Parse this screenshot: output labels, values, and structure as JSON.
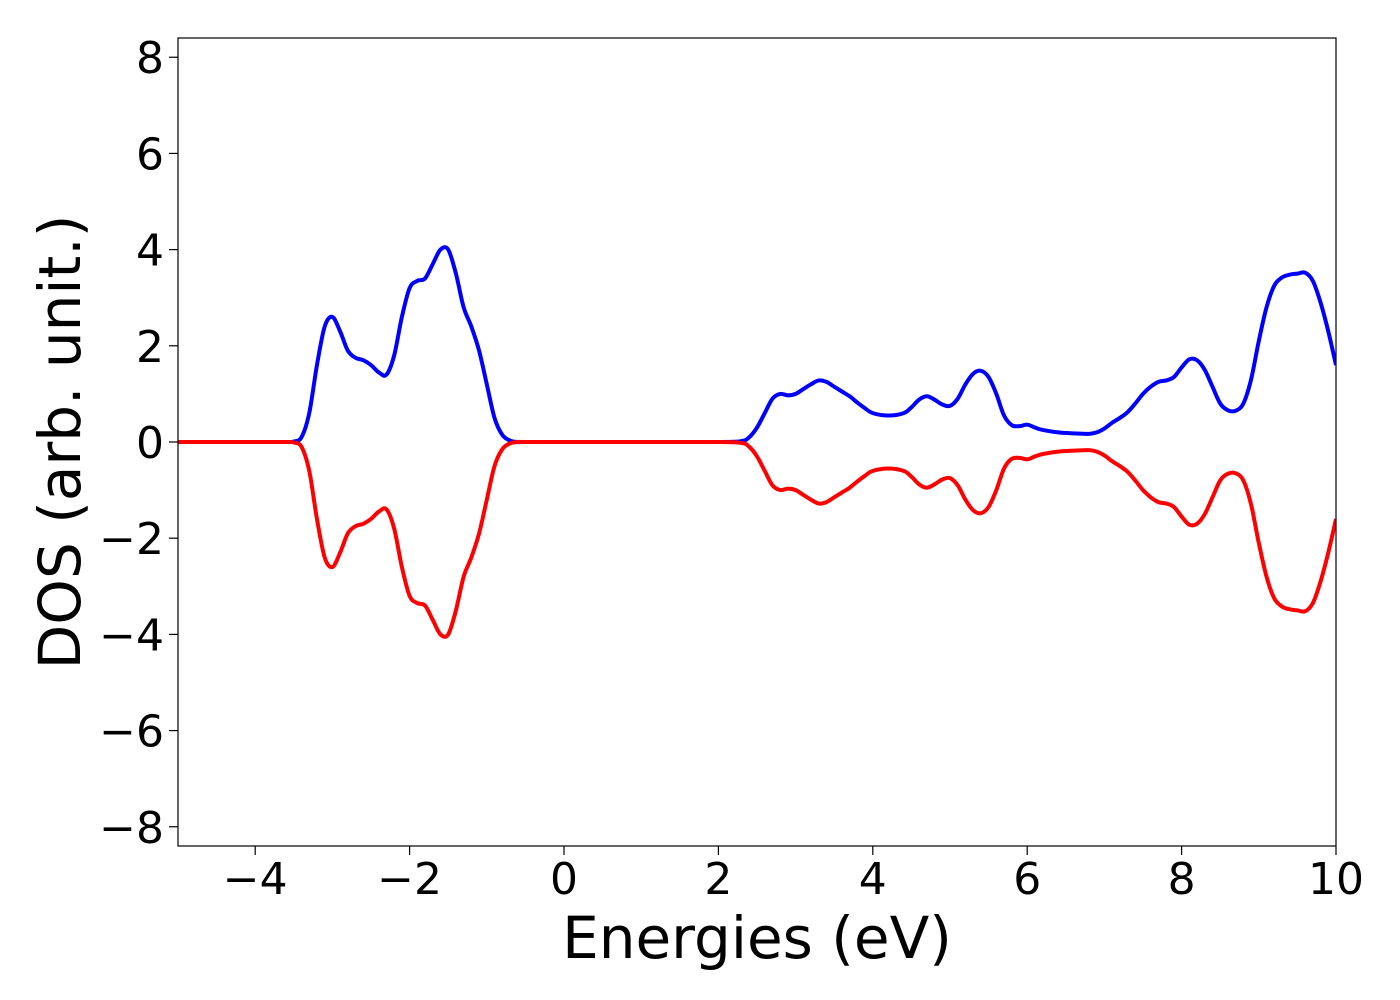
{
  "chart_data": {
    "type": "line",
    "title": "",
    "xlabel": "Energies (eV)",
    "ylabel": "DOS (arb. unit.)",
    "xlim": [
      -5,
      10
    ],
    "ylim": [
      -8.4,
      8.4
    ],
    "xticks": [
      -4,
      -2,
      0,
      2,
      4,
      6,
      8,
      10
    ],
    "yticks": [
      -8,
      -6,
      -4,
      -2,
      0,
      2,
      4,
      6,
      8
    ],
    "xtick_labels": [
      "−4",
      "−2",
      "0",
      "2",
      "4",
      "6",
      "8",
      "10"
    ],
    "ytick_labels": [
      "−8",
      "−6",
      "−4",
      "−2",
      "0",
      "2",
      "4",
      "6",
      "8"
    ],
    "grid": false,
    "legend": "none",
    "series": [
      {
        "color": "#0000ff",
        "x": [
          -5.0,
          -4.0,
          -3.6,
          -3.5,
          -3.4,
          -3.3,
          -3.2,
          -3.1,
          -3.0,
          -2.9,
          -2.8,
          -2.7,
          -2.6,
          -2.5,
          -2.4,
          -2.3,
          -2.2,
          -2.1,
          -2.0,
          -1.9,
          -1.8,
          -1.7,
          -1.6,
          -1.5,
          -1.4,
          -1.3,
          -1.2,
          -1.1,
          -1.0,
          -0.9,
          -0.8,
          -0.7,
          -0.6,
          -0.5,
          0.0,
          1.0,
          2.0,
          2.3,
          2.4,
          2.5,
          2.6,
          2.7,
          2.8,
          2.9,
          3.0,
          3.1,
          3.2,
          3.3,
          3.4,
          3.5,
          3.6,
          3.7,
          3.8,
          3.9,
          4.0,
          4.2,
          4.4,
          4.5,
          4.6,
          4.7,
          4.8,
          4.9,
          5.0,
          5.1,
          5.2,
          5.3,
          5.4,
          5.5,
          5.6,
          5.7,
          5.8,
          5.9,
          6.0,
          6.1,
          6.2,
          6.4,
          6.6,
          6.8,
          6.9,
          7.0,
          7.1,
          7.2,
          7.3,
          7.4,
          7.5,
          7.6,
          7.7,
          7.8,
          7.9,
          8.0,
          8.1,
          8.2,
          8.3,
          8.4,
          8.5,
          8.6,
          8.7,
          8.8,
          8.9,
          9.0,
          9.1,
          9.2,
          9.3,
          9.4,
          9.5,
          9.6,
          9.7,
          9.8,
          9.9,
          10.0
        ],
        "y": [
          0.0,
          0.0,
          0.0,
          0.01,
          0.1,
          0.6,
          1.6,
          2.4,
          2.6,
          2.3,
          1.9,
          1.75,
          1.7,
          1.6,
          1.45,
          1.4,
          1.8,
          2.6,
          3.2,
          3.35,
          3.4,
          3.7,
          4.0,
          4.0,
          3.5,
          2.8,
          2.4,
          1.9,
          1.2,
          0.5,
          0.15,
          0.03,
          0.0,
          0.0,
          0.0,
          0.0,
          0.0,
          0.02,
          0.1,
          0.3,
          0.6,
          0.9,
          1.0,
          0.97,
          1.0,
          1.1,
          1.2,
          1.28,
          1.25,
          1.15,
          1.05,
          0.95,
          0.82,
          0.7,
          0.6,
          0.55,
          0.6,
          0.72,
          0.88,
          0.95,
          0.88,
          0.78,
          0.75,
          0.9,
          1.2,
          1.42,
          1.48,
          1.35,
          1.0,
          0.55,
          0.35,
          0.33,
          0.36,
          0.3,
          0.25,
          0.2,
          0.18,
          0.17,
          0.2,
          0.28,
          0.4,
          0.5,
          0.62,
          0.8,
          1.0,
          1.15,
          1.25,
          1.28,
          1.35,
          1.55,
          1.72,
          1.7,
          1.5,
          1.15,
          0.8,
          0.66,
          0.65,
          0.8,
          1.3,
          2.1,
          2.8,
          3.25,
          3.42,
          3.48,
          3.5,
          3.52,
          3.35,
          2.9,
          2.3,
          1.6
        ]
      },
      {
        "color": "#ff0000",
        "x": [
          -5.0,
          -4.0,
          -3.6,
          -3.5,
          -3.4,
          -3.3,
          -3.2,
          -3.1,
          -3.0,
          -2.9,
          -2.8,
          -2.7,
          -2.6,
          -2.5,
          -2.4,
          -2.3,
          -2.2,
          -2.1,
          -2.0,
          -1.9,
          -1.8,
          -1.7,
          -1.6,
          -1.5,
          -1.4,
          -1.3,
          -1.2,
          -1.1,
          -1.0,
          -0.9,
          -0.8,
          -0.7,
          -0.6,
          -0.5,
          0.0,
          1.0,
          2.0,
          2.3,
          2.4,
          2.5,
          2.6,
          2.7,
          2.8,
          2.9,
          3.0,
          3.1,
          3.2,
          3.3,
          3.4,
          3.5,
          3.6,
          3.7,
          3.8,
          3.9,
          4.0,
          4.2,
          4.4,
          4.5,
          4.6,
          4.7,
          4.8,
          4.9,
          5.0,
          5.1,
          5.2,
          5.3,
          5.4,
          5.5,
          5.6,
          5.7,
          5.8,
          5.9,
          6.0,
          6.1,
          6.2,
          6.4,
          6.6,
          6.8,
          6.9,
          7.0,
          7.1,
          7.2,
          7.3,
          7.4,
          7.5,
          7.6,
          7.7,
          7.8,
          7.9,
          8.0,
          8.1,
          8.2,
          8.3,
          8.4,
          8.5,
          8.6,
          8.7,
          8.8,
          8.9,
          9.0,
          9.1,
          9.2,
          9.3,
          9.4,
          9.5,
          9.6,
          9.7,
          9.8,
          9.9,
          10.0
        ],
        "y": [
          0.0,
          0.0,
          0.0,
          -0.01,
          -0.1,
          -0.6,
          -1.6,
          -2.4,
          -2.6,
          -2.3,
          -1.9,
          -1.75,
          -1.7,
          -1.6,
          -1.45,
          -1.4,
          -1.8,
          -2.6,
          -3.2,
          -3.35,
          -3.4,
          -3.7,
          -4.0,
          -4.0,
          -3.5,
          -2.8,
          -2.4,
          -1.9,
          -1.2,
          -0.5,
          -0.15,
          -0.03,
          0.0,
          0.0,
          0.0,
          0.0,
          0.0,
          -0.02,
          -0.1,
          -0.3,
          -0.6,
          -0.9,
          -1.0,
          -0.97,
          -1.0,
          -1.1,
          -1.2,
          -1.28,
          -1.25,
          -1.15,
          -1.05,
          -0.95,
          -0.82,
          -0.7,
          -0.6,
          -0.55,
          -0.6,
          -0.72,
          -0.88,
          -0.95,
          -0.88,
          -0.78,
          -0.75,
          -0.9,
          -1.2,
          -1.42,
          -1.48,
          -1.35,
          -1.0,
          -0.55,
          -0.35,
          -0.33,
          -0.36,
          -0.3,
          -0.25,
          -0.2,
          -0.18,
          -0.17,
          -0.2,
          -0.28,
          -0.4,
          -0.5,
          -0.62,
          -0.8,
          -1.0,
          -1.15,
          -1.25,
          -1.28,
          -1.35,
          -1.55,
          -1.72,
          -1.7,
          -1.5,
          -1.15,
          -0.8,
          -0.66,
          -0.65,
          -0.8,
          -1.3,
          -2.1,
          -2.8,
          -3.25,
          -3.42,
          -3.48,
          -3.5,
          -3.52,
          -3.35,
          -2.9,
          -2.3,
          -1.6
        ]
      }
    ]
  }
}
